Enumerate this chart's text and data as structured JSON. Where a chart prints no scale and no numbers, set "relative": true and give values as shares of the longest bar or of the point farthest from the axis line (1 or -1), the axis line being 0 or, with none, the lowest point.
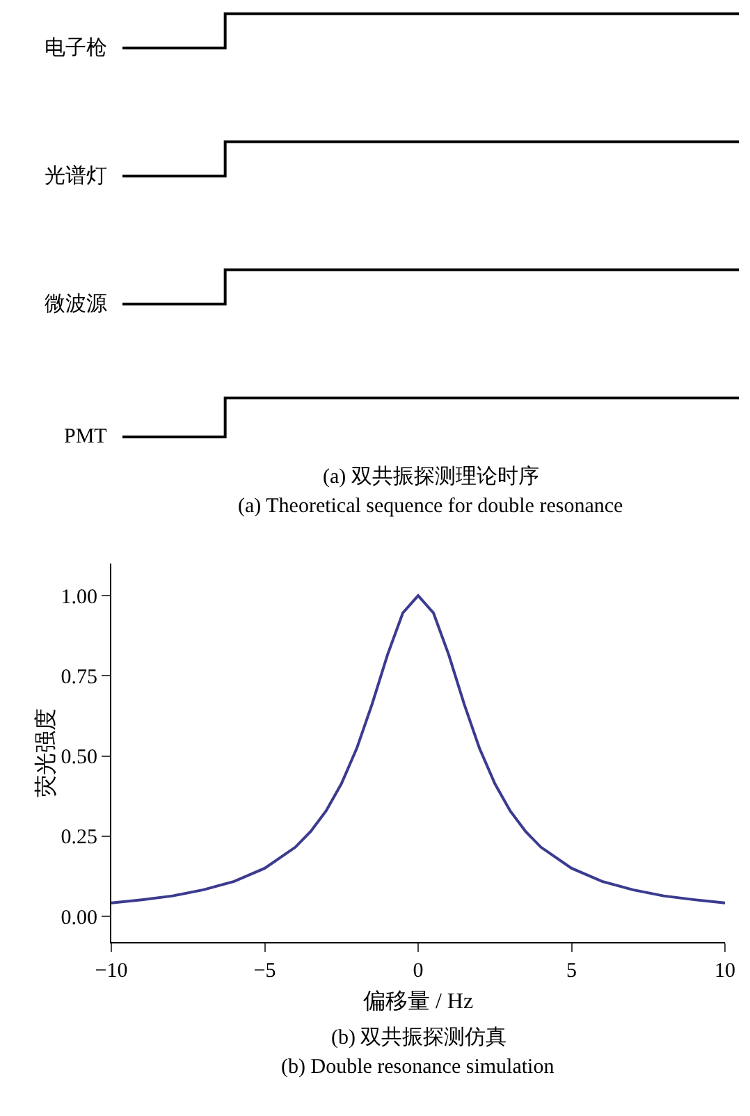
{
  "chart_data": [
    {
      "type": "step",
      "relative": true,
      "legend": false,
      "categories": [
        null,
        null,
        null,
        null,
        null,
        null,
        null
      ],
      "series": [
        {
          "name": "电子枪",
          "color": "#000000",
          "values": [
            0,
            1,
            1,
            1,
            1,
            1,
            1
          ]
        }
      ]
    },
    {
      "type": "step",
      "relative": true,
      "legend": false,
      "categories": [
        null,
        null,
        null,
        null,
        null,
        null,
        null
      ],
      "series": [
        {
          "name": "光谱灯",
          "color": "#000000",
          "values": [
            0,
            1,
            1,
            1,
            1,
            1,
            1
          ]
        }
      ]
    },
    {
      "type": "step",
      "relative": true,
      "legend": false,
      "categories": [
        null,
        null,
        null,
        null,
        null,
        null,
        null
      ],
      "series": [
        {
          "name": "微波源",
          "color": "#000000",
          "values": [
            0,
            1,
            1,
            1,
            1,
            1,
            1
          ]
        }
      ]
    },
    {
      "type": "step",
      "relative": true,
      "legend": false,
      "categories": [
        null,
        null,
        null,
        null,
        null,
        null,
        null
      ],
      "series": [
        {
          "name": "PMT",
          "color": "#000000",
          "values": [
            0,
            1,
            1,
            1,
            1,
            1,
            1
          ]
        }
      ],
      "annotations": [
        "(a) 双共振探测理论时序",
        "(a) Theoretical sequence for double resonance"
      ]
    },
    {
      "type": "line",
      "xlabel": "偏移量 / Hz",
      "ylabel": "荧光强度",
      "legend": false,
      "grid": false,
      "x": [
        -10,
        -9,
        -8,
        -7,
        -6,
        -5,
        -4,
        -3.5,
        -3,
        -2.5,
        -2,
        -1.5,
        -1,
        -0.5,
        0,
        0.5,
        1,
        1.5,
        2,
        2.5,
        3,
        3.5,
        4,
        5,
        6,
        7,
        8,
        9,
        10
      ],
      "series": [
        {
          "color": "#3b3b8f",
          "values": [
            0.042,
            0.052,
            0.064,
            0.083,
            0.109,
            0.15,
            0.216,
            0.265,
            0.329,
            0.414,
            0.524,
            0.662,
            0.815,
            0.946,
            1,
            0.946,
            0.815,
            0.662,
            0.524,
            0.414,
            0.329,
            0.265,
            0.216,
            0.15,
            0.109,
            0.083,
            0.064,
            0.052,
            0.042
          ]
        }
      ],
      "xlim": [
        -10,
        10
      ],
      "xticks": [
        {
          "value": -10,
          "label": "−10"
        },
        {
          "value": -5,
          "label": "−5"
        },
        0,
        5,
        10
      ],
      "ylim": [
        -0.08,
        1.1
      ],
      "yticks": [
        {
          "value": 0,
          "label": "0.00"
        },
        {
          "value": 0.25,
          "label": "0.25"
        },
        {
          "value": 0.5,
          "label": "0.50"
        },
        {
          "value": 0.75,
          "label": "0.75"
        },
        {
          "value": 1,
          "label": "1.00"
        }
      ],
      "annotations": [
        "(b) 双共振探测仿真",
        "(b) Double resonance simulation"
      ]
    }
  ]
}
